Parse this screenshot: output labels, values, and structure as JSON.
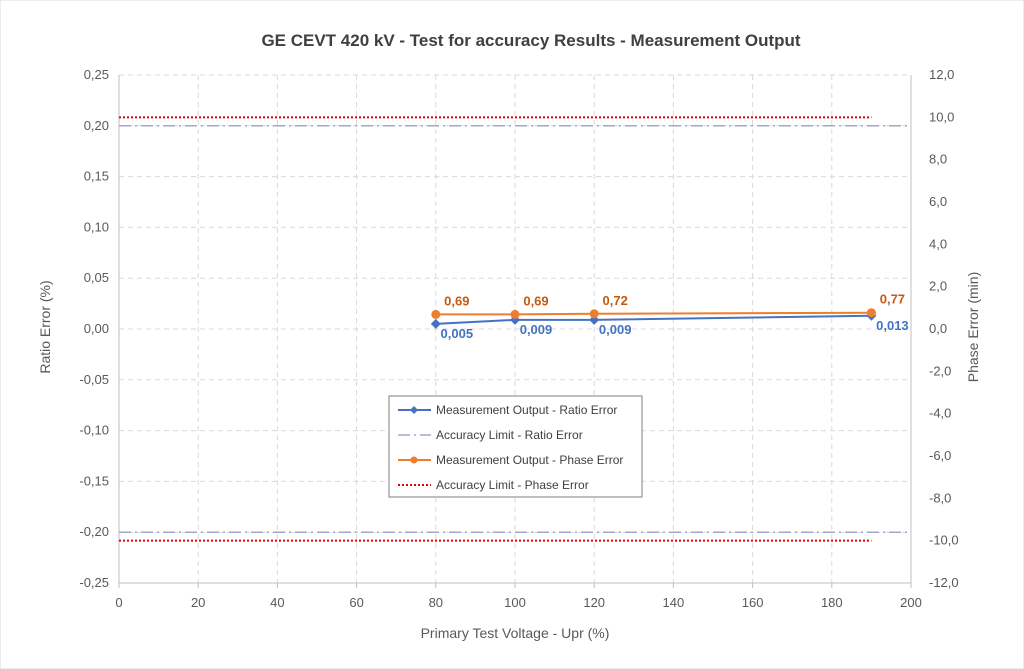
{
  "chart_data": {
    "type": "line",
    "title": "GE CEVT 420 kV - Test for accuracy Results - Measurement Output",
    "xlabel": "Primary Test Voltage - Upr (%)",
    "ylabel": "Ratio Error (%)",
    "y2label": "Phase Error (min)",
    "xlim": [
      0,
      200
    ],
    "xticks": [
      0,
      20,
      40,
      60,
      80,
      100,
      120,
      140,
      160,
      180,
      200
    ],
    "ylim": [
      -0.25,
      0.25
    ],
    "yticks": [
      "-0,25",
      "-0,20",
      "-0,15",
      "-0,10",
      "-0,05",
      "0,00",
      "0,05",
      "0,10",
      "0,15",
      "0,20",
      "0,25"
    ],
    "ytick_values": [
      -0.25,
      -0.2,
      -0.15,
      -0.1,
      -0.05,
      0,
      0.05,
      0.1,
      0.15,
      0.2,
      0.25
    ],
    "y2lim": [
      -12,
      12
    ],
    "y2ticks": [
      "-12,0",
      "-10,0",
      "-8,0",
      "-6,0",
      "-4,0",
      "-2,0",
      "0,0",
      "2,0",
      "4,0",
      "6,0",
      "8,0",
      "10,0",
      "12,0"
    ],
    "y2tick_values": [
      -12,
      -10,
      -8,
      -6,
      -4,
      -2,
      0,
      2,
      4,
      6,
      8,
      10,
      12
    ],
    "grid": true,
    "legend_position": "center",
    "series": [
      {
        "name": "Measurement Output - Ratio Error",
        "axis": "left",
        "style": "solid-diamond",
        "color": "#4472C4",
        "x": [
          80,
          100,
          120,
          190
        ],
        "y": [
          0.005,
          0.009,
          0.009,
          0.013
        ],
        "labels": [
          "0,005",
          "0,009",
          "0,009",
          "0,013"
        ]
      },
      {
        "name": "Accuracy Limit - Ratio Error",
        "axis": "left",
        "style": "dashdot",
        "color": "#A5A5C8",
        "x": [
          0,
          200
        ],
        "y": [
          0.2,
          0.2
        ],
        "y_mirror": [
          -0.2,
          -0.2
        ]
      },
      {
        "name": "Measurement Output - Phase Error",
        "axis": "right",
        "style": "solid-circle",
        "color": "#ED7D31",
        "x": [
          80,
          100,
          120,
          190
        ],
        "y": [
          0.69,
          0.69,
          0.72,
          0.77
        ],
        "labels": [
          "0,69",
          "0,69",
          "0,72",
          "0,77"
        ]
      },
      {
        "name": "Accuracy Limit - Phase Error",
        "axis": "right",
        "style": "dotted",
        "color": "#E00000",
        "x": [
          0,
          190
        ],
        "y": [
          10,
          10
        ],
        "y_mirror": [
          -10,
          -10
        ]
      }
    ]
  }
}
